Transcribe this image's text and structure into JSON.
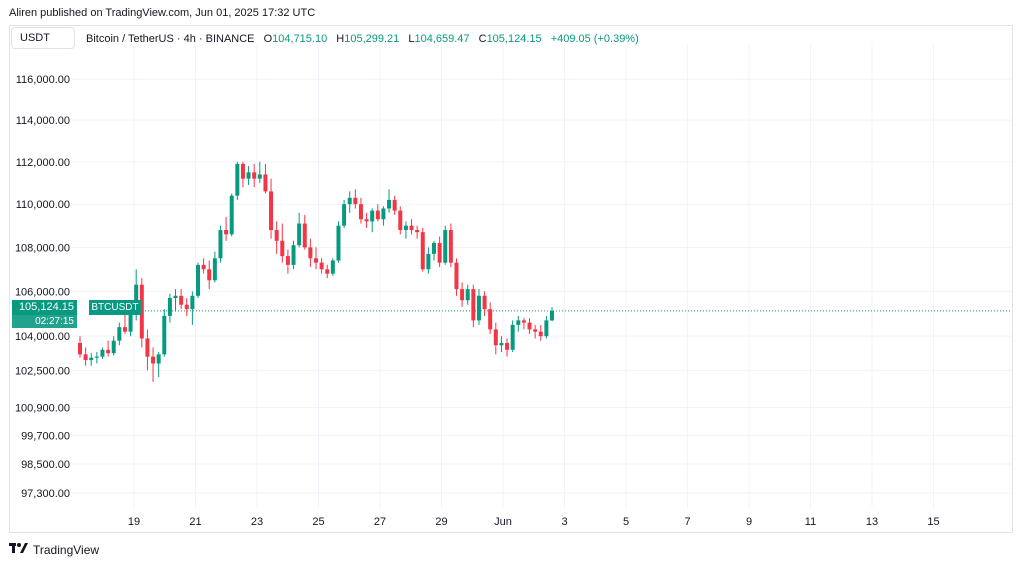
{
  "header": {
    "published": "Aliren published on TradingView.com, Jun 01, 2025 17:32 UTC"
  },
  "toolbar": {
    "symbol_button": "USDT"
  },
  "legend": {
    "title": "Bitcoin / TetherUS · 4h · BINANCE",
    "o_label": "O",
    "o_value": "104,715.10",
    "h_label": "H",
    "h_value": "105,299.21",
    "l_label": "L",
    "l_value": "104,659.47",
    "c_label": "C",
    "c_value": "105,124.15",
    "change": "+409.05 (+0.39%)"
  },
  "price_tag": {
    "price": "105,124.15",
    "countdown": "02:27:15",
    "symbol": "BTCUSDT"
  },
  "footer": {
    "brand": "TradingView"
  },
  "colors": {
    "up": "#089981",
    "down": "#f23645",
    "grid": "#f0f3fa",
    "price_line": "#089981"
  },
  "chart_data": {
    "type": "candlestick",
    "scale": "log",
    "ylim": [
      96800,
      117200
    ],
    "y_ticks": [
      {
        "value": 116000,
        "label": "116,000.00"
      },
      {
        "value": 114000,
        "label": "114,000.00"
      },
      {
        "value": 112000,
        "label": "112,000.00"
      },
      {
        "value": 110000,
        "label": "110,000.00"
      },
      {
        "value": 108000,
        "label": "108,000.00"
      },
      {
        "value": 106000,
        "label": "106,000.00"
      },
      {
        "value": 104000,
        "label": "104,000.00"
      },
      {
        "value": 102500,
        "label": "102,500.00"
      },
      {
        "value": 100900,
        "label": "100,900.00"
      },
      {
        "value": 99700,
        "label": "99,700.00"
      },
      {
        "value": 98500,
        "label": "98,500.00"
      },
      {
        "value": 97300,
        "label": "97,300.00"
      }
    ],
    "x_ticks": [
      "19",
      "21",
      "23",
      "25",
      "27",
      "29",
      "Jun",
      "3",
      "5",
      "7",
      "9",
      "11",
      "13",
      "15"
    ],
    "last_price": 105124.15,
    "candles": [
      [
        103700,
        104000,
        103050,
        103200
      ],
      [
        103200,
        103500,
        102700,
        102950
      ],
      [
        102950,
        103250,
        102700,
        103050
      ],
      [
        103050,
        103300,
        102800,
        103100
      ],
      [
        103100,
        103500,
        103000,
        103400
      ],
      [
        103400,
        103800,
        103100,
        103250
      ],
      [
        103250,
        104000,
        103150,
        103800
      ],
      [
        103800,
        104600,
        103600,
        104400
      ],
      [
        104400,
        105200,
        104100,
        104200
      ],
      [
        104200,
        105600,
        104000,
        105000
      ],
      [
        105000,
        107000,
        104700,
        106300
      ],
      [
        106300,
        106600,
        103500,
        103900
      ],
      [
        103900,
        104300,
        102500,
        103100
      ],
      [
        103100,
        103500,
        102000,
        102800
      ],
      [
        102800,
        103300,
        102200,
        103200
      ],
      [
        103200,
        105200,
        103100,
        104900
      ],
      [
        104900,
        105900,
        104600,
        105700
      ],
      [
        105700,
        106100,
        105100,
        105800
      ],
      [
        105800,
        106100,
        105200,
        105400
      ],
      [
        105400,
        105700,
        104900,
        105200
      ],
      [
        105200,
        106000,
        104500,
        105800
      ],
      [
        105800,
        107300,
        105700,
        107200
      ],
      [
        107200,
        107500,
        106800,
        107000
      ],
      [
        107000,
        107400,
        106100,
        106500
      ],
      [
        106500,
        107800,
        106400,
        107500
      ],
      [
        107500,
        109000,
        107300,
        108800
      ],
      [
        108800,
        109400,
        108300,
        108600
      ],
      [
        108600,
        110500,
        108500,
        110400
      ],
      [
        110400,
        112000,
        110200,
        111900
      ],
      [
        111900,
        112000,
        110800,
        111200
      ],
      [
        111200,
        111800,
        110900,
        111500
      ],
      [
        111500,
        111900,
        110800,
        111200
      ],
      [
        111200,
        112000,
        111000,
        111400
      ],
      [
        111400,
        111900,
        110500,
        110600
      ],
      [
        110600,
        111200,
        108400,
        108800
      ],
      [
        108800,
        109200,
        107700,
        108300
      ],
      [
        108300,
        109100,
        107300,
        107600
      ],
      [
        107600,
        107900,
        106800,
        107200
      ],
      [
        107200,
        108300,
        107000,
        108100
      ],
      [
        108100,
        109600,
        108000,
        109100
      ],
      [
        109100,
        109500,
        107900,
        108000
      ],
      [
        108000,
        108400,
        107100,
        107500
      ],
      [
        107500,
        108000,
        107000,
        107300
      ],
      [
        107300,
        107500,
        106800,
        107000
      ],
      [
        107000,
        107200,
        106600,
        106800
      ],
      [
        106800,
        107500,
        106700,
        107400
      ],
      [
        107400,
        109200,
        107300,
        109000
      ],
      [
        109000,
        110200,
        108900,
        110000
      ],
      [
        110000,
        110600,
        109600,
        110300
      ],
      [
        110300,
        110700,
        109800,
        110000
      ],
      [
        110000,
        110300,
        109100,
        109300
      ],
      [
        109300,
        109600,
        108900,
        109200
      ],
      [
        109200,
        109800,
        108700,
        109700
      ],
      [
        109700,
        110000,
        109200,
        109300
      ],
      [
        109300,
        109900,
        109000,
        109800
      ],
      [
        109800,
        110700,
        109600,
        110200
      ],
      [
        110200,
        110400,
        109500,
        109700
      ],
      [
        109700,
        109900,
        108600,
        108800
      ],
      [
        108800,
        109200,
        108400,
        109000
      ],
      [
        109000,
        109300,
        108600,
        108800
      ],
      [
        108800,
        109000,
        108400,
        108700
      ],
      [
        108700,
        108900,
        106900,
        107000
      ],
      [
        107000,
        108000,
        106800,
        107700
      ],
      [
        107700,
        108300,
        107400,
        108200
      ],
      [
        108200,
        108500,
        107100,
        107300
      ],
      [
        107300,
        109000,
        107200,
        108800
      ],
      [
        108800,
        109100,
        107100,
        107300
      ],
      [
        107300,
        107500,
        105800,
        106100
      ],
      [
        106100,
        106400,
        105300,
        105600
      ],
      [
        105600,
        106300,
        105400,
        106100
      ],
      [
        106100,
        106300,
        104400,
        104700
      ],
      [
        104700,
        106100,
        104500,
        105800
      ],
      [
        105800,
        106000,
        104900,
        105200
      ],
      [
        105200,
        105500,
        104100,
        104300
      ],
      [
        104300,
        104600,
        103200,
        103600
      ],
      [
        103600,
        104000,
        103300,
        103700
      ],
      [
        103700,
        103900,
        103100,
        103400
      ],
      [
        103400,
        104700,
        103300,
        104500
      ],
      [
        104500,
        104900,
        104200,
        104700
      ],
      [
        104700,
        104800,
        104300,
        104600
      ],
      [
        104600,
        104800,
        104100,
        104300
      ],
      [
        104300,
        104500,
        103900,
        104200
      ],
      [
        104200,
        104500,
        103800,
        104000
      ],
      [
        104000,
        104900,
        103900,
        104700
      ],
      [
        104700,
        105300,
        104660,
        105124
      ]
    ]
  }
}
